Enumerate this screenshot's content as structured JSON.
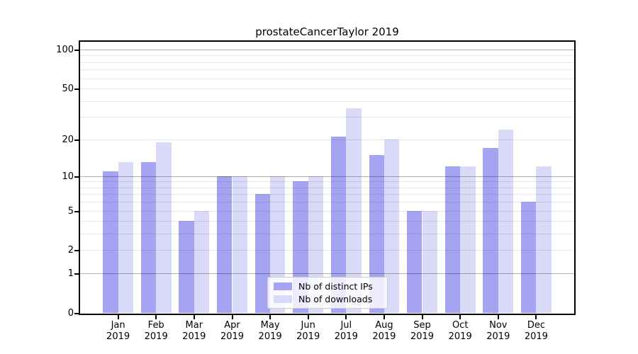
{
  "title": "prostateCancerTaylor 2019",
  "chart_data": {
    "type": "bar",
    "x_year": "2019",
    "categories": [
      "Jan",
      "Feb",
      "Mar",
      "Apr",
      "May",
      "Jun",
      "Jul",
      "Aug",
      "Sep",
      "Oct",
      "Nov",
      "Dec"
    ],
    "series": [
      {
        "name": "Nb of distinct IPs",
        "color": "#a4a4f2",
        "values": [
          11,
          13,
          4,
          10,
          7,
          9,
          21,
          15,
          5,
          12,
          17,
          6
        ]
      },
      {
        "name": "Nb of downloads",
        "color": "#d9d9f8",
        "values": [
          13,
          19,
          5,
          10,
          10,
          10,
          35,
          20,
          5,
          12,
          24,
          12
        ]
      }
    ],
    "y_ticks": [
      0,
      1,
      2,
      5,
      10,
      20,
      50,
      100
    ],
    "major_gridlines": [
      1,
      10,
      100
    ],
    "minor_gridlines": [
      2,
      3,
      4,
      5,
      6,
      7,
      8,
      9,
      20,
      30,
      40,
      50,
      60,
      70,
      80,
      90
    ],
    "scale": "log10(1+x)",
    "ylim": [
      0,
      115
    ],
    "grid": "on",
    "legend_position": "lower center"
  }
}
